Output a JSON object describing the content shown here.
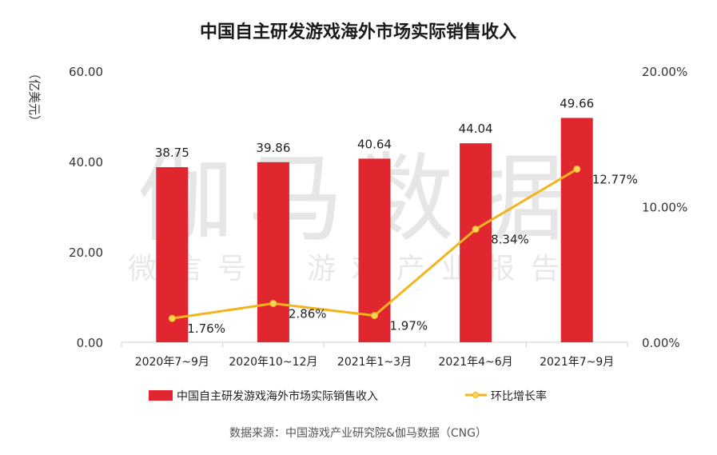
{
  "watermark": {
    "main": "伽马数据",
    "sub": "微信号：游戏产业报告"
  },
  "source": "数据来源：中国游戏产业研究院&伽马数据（CNG）",
  "chart_data": {
    "type": "bar",
    "title": "中国自主研发游戏海外市场实际销售收入",
    "ylabel": "（亿美元）",
    "y2label": "",
    "xlabel": "",
    "categories": [
      "2020年7~9月",
      "2020年10~12月",
      "2021年1~3月",
      "2021年4~6月",
      "2021年7~9月"
    ],
    "ylim": [
      0,
      60
    ],
    "y2lim": [
      0,
      20
    ],
    "yticks": [
      "0.00",
      "20.00",
      "40.00",
      "60.00"
    ],
    "y2ticks": [
      "0.00%",
      "10.00%",
      "20.00%"
    ],
    "series": [
      {
        "name": "中国自主研发游戏海外市场实际销售收入",
        "type": "bar",
        "axis": "left",
        "color": "#e0262f",
        "values": [
          38.75,
          39.86,
          40.64,
          44.04,
          49.66
        ],
        "labels": [
          "38.75",
          "39.86",
          "40.64",
          "44.04",
          "49.66"
        ]
      },
      {
        "name": "环比增长率",
        "type": "line",
        "axis": "right",
        "color": "#f2b51c",
        "values": [
          1.76,
          2.86,
          1.97,
          8.34,
          12.77
        ],
        "labels": [
          "1.76%",
          "2.86%",
          "1.97%",
          "8.34%",
          "12.77%"
        ]
      }
    ],
    "legend_position": "bottom",
    "grid": false
  }
}
